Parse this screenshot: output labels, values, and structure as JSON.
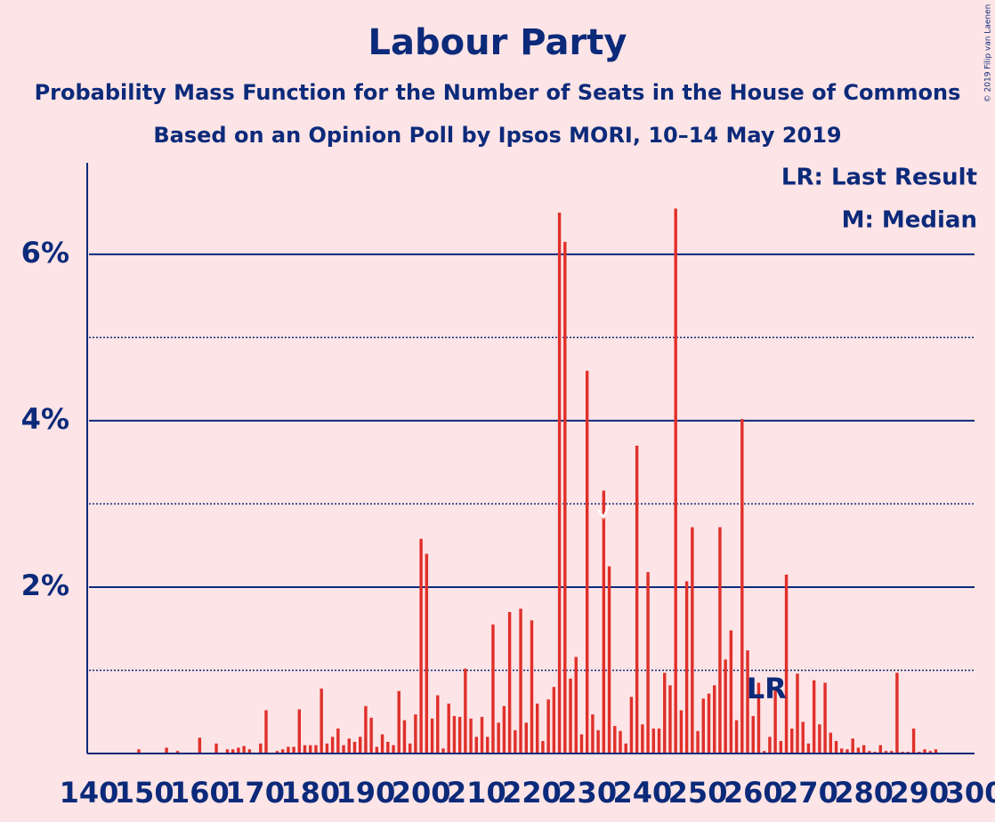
{
  "chart_data": {
    "type": "bar",
    "title": "Labour Party",
    "subtitle": "Probability Mass Function for the Number of Seats in the House of Commons",
    "subtitle2": "Based on an Opinion Poll by Ipsos MORI, 10–14 May 2019",
    "copyright": "© 2019 Filip van Laenen",
    "legend": [
      "LR: Last Result",
      "M: Median"
    ],
    "legend_position": "upper right",
    "color": "#e0302a",
    "x": [
      140,
      141,
      142,
      143,
      144,
      145,
      146,
      147,
      148,
      149,
      150,
      151,
      152,
      153,
      154,
      155,
      156,
      157,
      158,
      159,
      160,
      161,
      162,
      163,
      164,
      165,
      166,
      167,
      168,
      169,
      170,
      171,
      172,
      173,
      174,
      175,
      176,
      177,
      178,
      179,
      180,
      181,
      182,
      183,
      184,
      185,
      186,
      187,
      188,
      189,
      190,
      191,
      192,
      193,
      194,
      195,
      196,
      197,
      198,
      199,
      200,
      201,
      202,
      203,
      204,
      205,
      206,
      207,
      208,
      209,
      210,
      211,
      212,
      213,
      214,
      215,
      216,
      217,
      218,
      219,
      220,
      221,
      222,
      223,
      224,
      225,
      226,
      227,
      228,
      229,
      230,
      231,
      232,
      233,
      234,
      235,
      236,
      237,
      238,
      239,
      240,
      241,
      242,
      243,
      244,
      245,
      246,
      247,
      248,
      249,
      250,
      251,
      252,
      253,
      254,
      255,
      256,
      257,
      258,
      259,
      260,
      261,
      262,
      263,
      264,
      265,
      266,
      267,
      268,
      269,
      270,
      271,
      272,
      273,
      274,
      275,
      276,
      277,
      278,
      279,
      280,
      281,
      282,
      283,
      284,
      285,
      286,
      287,
      288,
      289,
      290,
      291,
      292,
      293,
      294,
      295,
      296,
      297,
      298,
      299,
      300
    ],
    "values": [
      0,
      0,
      0,
      0,
      0,
      0,
      0,
      0,
      0,
      0.05,
      0,
      0,
      0,
      0,
      0.07,
      0,
      0.03,
      0,
      0,
      0,
      0.19,
      0,
      0,
      0.12,
      0,
      0.05,
      0.05,
      0.07,
      0.09,
      0.05,
      0,
      0.12,
      0.52,
      0,
      0.03,
      0.05,
      0.08,
      0.08,
      0.53,
      0.1,
      0.1,
      0.1,
      0.78,
      0.12,
      0.2,
      0.3,
      0.1,
      0.18,
      0.14,
      0.2,
      0.57,
      0.43,
      0.08,
      0.23,
      0.14,
      0.1,
      0.75,
      0.4,
      0.12,
      0.47,
      2.58,
      2.4,
      0.42,
      0.7,
      0.06,
      0.6,
      0.45,
      0.44,
      1.02,
      0.42,
      0.2,
      0.44,
      0.2,
      1.55,
      0.37,
      0.57,
      1.7,
      0.28,
      1.74,
      0.37,
      1.6,
      0.6,
      0.15,
      0.65,
      0.8,
      6.5,
      6.15,
      0.9,
      1.16,
      0.23,
      4.6,
      0.47,
      0.28,
      3.16,
      2.25,
      0.33,
      0.27,
      0.12,
      0.68,
      3.7,
      0.35,
      2.18,
      0.3,
      0.3,
      0.97,
      0.82,
      6.55,
      0.52,
      2.07,
      2.72,
      0.27,
      0.66,
      0.72,
      0.82,
      2.72,
      1.13,
      1.48,
      0.4,
      4.02,
      1.24,
      0.45,
      0.85,
      0.03,
      0.2,
      0.8,
      0.15,
      2.15,
      0.3,
      0.96,
      0.38,
      0.12,
      0.88,
      0.35,
      0.85,
      0.25,
      0.15,
      0.06,
      0.05,
      0.18,
      0.07,
      0.1,
      0.03,
      0.02,
      0.1,
      0.03,
      0.03,
      0.97,
      0.02,
      0.02,
      0.3,
      0.02,
      0.05,
      0.03,
      0.05,
      0,
      0,
      0,
      0,
      0,
      0,
      0
    ],
    "last_result": {
      "label": "LR",
      "x": 262
    },
    "median": 233,
    "xlim": [
      140,
      300
    ],
    "xticks": [
      140,
      150,
      160,
      170,
      180,
      190,
      200,
      210,
      220,
      230,
      240,
      250,
      260,
      270,
      280,
      290,
      300
    ],
    "ylim": [
      0,
      7.1
    ],
    "yticks": [
      {
        "value": 2,
        "label": "2%"
      },
      {
        "value": 4,
        "label": "4%"
      },
      {
        "value": 6,
        "label": "6%"
      }
    ],
    "minor_yticks": [
      1,
      3,
      5
    ],
    "grid": true
  }
}
